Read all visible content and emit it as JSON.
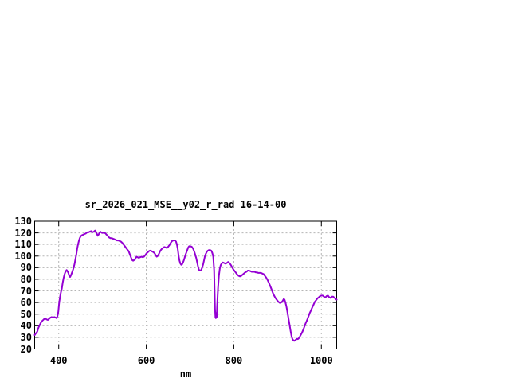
{
  "chart": {
    "background": "#ffffff",
    "border_color": "#000000",
    "grid_color": "#b5b5b5",
    "text_color": "#000000",
    "line_color": "#9400d3"
  },
  "chart_data": {
    "type": "line",
    "title": "sr_2026_021_MSE__y02_r_rad 16-14-00",
    "xlabel": "nm",
    "ylabel": "",
    "xlim": [
      345,
      1035
    ],
    "ylim": [
      20,
      130
    ],
    "x_ticks": [
      400,
      600,
      800,
      1000
    ],
    "y_ticks": [
      20,
      30,
      40,
      50,
      60,
      70,
      80,
      90,
      100,
      110,
      120,
      130
    ],
    "grid": true,
    "legend": "none",
    "series": [
      {
        "name": "sr_2026_021_MSE__y02_r_rad",
        "color": "#9400d3",
        "points": [
          [
            345,
            32
          ],
          [
            348,
            33.5
          ],
          [
            351,
            35
          ],
          [
            354,
            38.5
          ],
          [
            357,
            41
          ],
          [
            360,
            43
          ],
          [
            363,
            44.5
          ],
          [
            366,
            45.5
          ],
          [
            369,
            46.5
          ],
          [
            372,
            45.5
          ],
          [
            375,
            45
          ],
          [
            378,
            46
          ],
          [
            381,
            47
          ],
          [
            384,
            47.5
          ],
          [
            387,
            47
          ],
          [
            390,
            47.5
          ],
          [
            393,
            47
          ],
          [
            395,
            46.5
          ],
          [
            397,
            48
          ],
          [
            399,
            52
          ],
          [
            401,
            60
          ],
          [
            403,
            65
          ],
          [
            405,
            69
          ],
          [
            407,
            72
          ],
          [
            409,
            77
          ],
          [
            411,
            81
          ],
          [
            413,
            84
          ],
          [
            415,
            86
          ],
          [
            418,
            88
          ],
          [
            420,
            87
          ],
          [
            422,
            85.5
          ],
          [
            424,
            83
          ],
          [
            426,
            82
          ],
          [
            428,
            83.5
          ],
          [
            430,
            85.5
          ],
          [
            432,
            87.5
          ],
          [
            434,
            90
          ],
          [
            436,
            93
          ],
          [
            438,
            97
          ],
          [
            440,
            101
          ],
          [
            442,
            106
          ],
          [
            444,
            110
          ],
          [
            446,
            113
          ],
          [
            448,
            115.5
          ],
          [
            450,
            117
          ],
          [
            453,
            118
          ],
          [
            456,
            118.5
          ],
          [
            459,
            119
          ],
          [
            462,
            119.5
          ],
          [
            465,
            120.5
          ],
          [
            468,
            120.5
          ],
          [
            471,
            121
          ],
          [
            474,
            121.5
          ],
          [
            477,
            120.5
          ],
          [
            480,
            121
          ],
          [
            483,
            122
          ],
          [
            486,
            120.5
          ],
          [
            489,
            117.5
          ],
          [
            491,
            118.5
          ],
          [
            493,
            120
          ],
          [
            495,
            121
          ],
          [
            497,
            120.5
          ],
          [
            499,
            120
          ],
          [
            501,
            120
          ],
          [
            503,
            120.5
          ],
          [
            505,
            120
          ],
          [
            507,
            119.5
          ],
          [
            509,
            118.5
          ],
          [
            511,
            118
          ],
          [
            513,
            117
          ],
          [
            515,
            116
          ],
          [
            518,
            115.5
          ],
          [
            521,
            115.5
          ],
          [
            524,
            115
          ],
          [
            527,
            114.5
          ],
          [
            530,
            114
          ],
          [
            533,
            113.5
          ],
          [
            536,
            113.5
          ],
          [
            539,
            113
          ],
          [
            542,
            112.5
          ],
          [
            545,
            111.5
          ],
          [
            548,
            110
          ],
          [
            551,
            108.5
          ],
          [
            554,
            107
          ],
          [
            557,
            105.5
          ],
          [
            560,
            104
          ],
          [
            562,
            102
          ],
          [
            564,
            100
          ],
          [
            566,
            98
          ],
          [
            568,
            96.5
          ],
          [
            570,
            96
          ],
          [
            572,
            96.5
          ],
          [
            574,
            97
          ],
          [
            576,
            98.5
          ],
          [
            578,
            99.5
          ],
          [
            580,
            99
          ],
          [
            583,
            98.5
          ],
          [
            586,
            99
          ],
          [
            589,
            99.5
          ],
          [
            592,
            99
          ],
          [
            595,
            99.5
          ],
          [
            598,
            101
          ],
          [
            601,
            102.5
          ],
          [
            604,
            103.5
          ],
          [
            607,
            104.5
          ],
          [
            610,
            104.8
          ],
          [
            613,
            104
          ],
          [
            616,
            103.5
          ],
          [
            619,
            102.5
          ],
          [
            622,
            100.5
          ],
          [
            624,
            99.5
          ],
          [
            626,
            100
          ],
          [
            629,
            102
          ],
          [
            632,
            104.5
          ],
          [
            635,
            106
          ],
          [
            638,
            107
          ],
          [
            641,
            107.8
          ],
          [
            644,
            107.5
          ],
          [
            647,
            107
          ],
          [
            650,
            108
          ],
          [
            653,
            109.5
          ],
          [
            656,
            111.5
          ],
          [
            659,
            113
          ],
          [
            662,
            113.5
          ],
          [
            665,
            113.5
          ],
          [
            668,
            112.5
          ],
          [
            670,
            110
          ],
          [
            672,
            106
          ],
          [
            674,
            100
          ],
          [
            676,
            96
          ],
          [
            678,
            93.5
          ],
          [
            680,
            92.5
          ],
          [
            682,
            93
          ],
          [
            684,
            94.5
          ],
          [
            686,
            96.5
          ],
          [
            688,
            99
          ],
          [
            690,
            101.5
          ],
          [
            692,
            103.5
          ],
          [
            694,
            105.5
          ],
          [
            696,
            107.5
          ],
          [
            698,
            108.5
          ],
          [
            701,
            108.5
          ],
          [
            704,
            108
          ],
          [
            707,
            106.5
          ],
          [
            710,
            103.5
          ],
          [
            712,
            101
          ],
          [
            714,
            98.5
          ],
          [
            716,
            95
          ],
          [
            718,
            91.5
          ],
          [
            720,
            88.5
          ],
          [
            722,
            87.5
          ],
          [
            724,
            87.5
          ],
          [
            726,
            88.5
          ],
          [
            728,
            90.5
          ],
          [
            730,
            93
          ],
          [
            732,
            96.5
          ],
          [
            734,
            100
          ],
          [
            736,
            102
          ],
          [
            738,
            103.5
          ],
          [
            740,
            104.5
          ],
          [
            743,
            105.2
          ],
          [
            746,
            105.2
          ],
          [
            749,
            104.5
          ],
          [
            751,
            102.5
          ],
          [
            753,
            99.5
          ],
          [
            755,
            88
          ],
          [
            756,
            70
          ],
          [
            757,
            55
          ],
          [
            758,
            47
          ],
          [
            759,
            46.5
          ],
          [
            760,
            51
          ],
          [
            761,
            47.5
          ],
          [
            762,
            57
          ],
          [
            764,
            72
          ],
          [
            766,
            83
          ],
          [
            768,
            89
          ],
          [
            770,
            92
          ],
          [
            772,
            93.5
          ],
          [
            775,
            94.5
          ],
          [
            778,
            94
          ],
          [
            781,
            93.5
          ],
          [
            784,
            94
          ],
          [
            787,
            95
          ],
          [
            790,
            94
          ],
          [
            793,
            92.5
          ],
          [
            796,
            90.5
          ],
          [
            799,
            88.5
          ],
          [
            802,
            87
          ],
          [
            805,
            85.5
          ],
          [
            808,
            84
          ],
          [
            811,
            83
          ],
          [
            814,
            82.5
          ],
          [
            817,
            83
          ],
          [
            820,
            84
          ],
          [
            823,
            85
          ],
          [
            826,
            86
          ],
          [
            829,
            86.5
          ],
          [
            832,
            87.5
          ],
          [
            835,
            87.5
          ],
          [
            838,
            87
          ],
          [
            841,
            86.5
          ],
          [
            844,
            86.5
          ],
          [
            847,
            86.5
          ],
          [
            850,
            86
          ],
          [
            853,
            86
          ],
          [
            856,
            85.5
          ],
          [
            859,
            85.5
          ],
          [
            862,
            85.5
          ],
          [
            865,
            85
          ],
          [
            868,
            84.5
          ],
          [
            871,
            83
          ],
          [
            874,
            81.5
          ],
          [
            877,
            79.5
          ],
          [
            880,
            77
          ],
          [
            883,
            74.5
          ],
          [
            886,
            71.5
          ],
          [
            889,
            68.5
          ],
          [
            892,
            66
          ],
          [
            895,
            64
          ],
          [
            898,
            62.5
          ],
          [
            901,
            61
          ],
          [
            904,
            60
          ],
          [
            906,
            59.5
          ],
          [
            908,
            60
          ],
          [
            910,
            60.5
          ],
          [
            912,
            61.5
          ],
          [
            914,
            63
          ],
          [
            916,
            62.5
          ],
          [
            918,
            60
          ],
          [
            920,
            57
          ],
          [
            922,
            53
          ],
          [
            924,
            48.5
          ],
          [
            926,
            44
          ],
          [
            928,
            39.5
          ],
          [
            930,
            35
          ],
          [
            932,
            31
          ],
          [
            934,
            28.5
          ],
          [
            936,
            27.5
          ],
          [
            938,
            27
          ],
          [
            940,
            27.5
          ],
          [
            942,
            28
          ],
          [
            944,
            28.8
          ],
          [
            946,
            28.5
          ],
          [
            948,
            29
          ],
          [
            950,
            30
          ],
          [
            952,
            31.5
          ],
          [
            955,
            33.5
          ],
          [
            958,
            36
          ],
          [
            961,
            39
          ],
          [
            964,
            42
          ],
          [
            967,
            44.5
          ],
          [
            970,
            47.5
          ],
          [
            973,
            50.5
          ],
          [
            976,
            53
          ],
          [
            979,
            55.5
          ],
          [
            982,
            58
          ],
          [
            985,
            60.5
          ],
          [
            988,
            62
          ],
          [
            991,
            63.5
          ],
          [
            994,
            64.5
          ],
          [
            997,
            65.5
          ],
          [
            1000,
            66
          ],
          [
            1003,
            66
          ],
          [
            1006,
            65
          ],
          [
            1009,
            64.3
          ],
          [
            1012,
            65.5
          ],
          [
            1015,
            66
          ],
          [
            1018,
            64.5
          ],
          [
            1021,
            64
          ],
          [
            1024,
            65
          ],
          [
            1027,
            65
          ],
          [
            1030,
            64
          ],
          [
            1033,
            63
          ],
          [
            1035,
            62.5
          ]
        ]
      }
    ]
  }
}
